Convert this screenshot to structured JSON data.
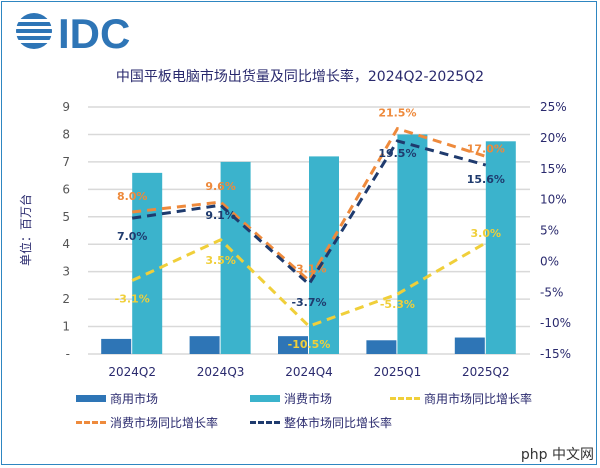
{
  "logo_text": "IDC",
  "watermark": "php 中文网",
  "chart_data": {
    "type": "bar+line",
    "title": "中国平板电脑市场出货量及同比增长率，2024Q2-2025Q2",
    "ylabel": "单位：百万台",
    "categories": [
      "2024Q2",
      "2024Q3",
      "2024Q4",
      "2025Q1",
      "2025Q2"
    ],
    "ylim": [
      0,
      9
    ],
    "y_ticks": [
      "-",
      "1",
      "2",
      "3",
      "4",
      "5",
      "6",
      "7",
      "8",
      "9"
    ],
    "y2lim": [
      -15,
      25
    ],
    "y2_ticks": [
      "-15%",
      "-10%",
      "-5%",
      "0%",
      "5%",
      "10%",
      "15%",
      "20%",
      "25%"
    ],
    "grid": true,
    "legend_position": "bottom",
    "bars": [
      {
        "name": "商用市场",
        "color": "#2e75b6",
        "values": [
          0.55,
          0.65,
          0.65,
          0.5,
          0.6
        ]
      },
      {
        "name": "消费市场",
        "color": "#3bb3cc",
        "values": [
          6.6,
          7.0,
          7.2,
          8.0,
          7.75
        ]
      }
    ],
    "lines": [
      {
        "name": "商用市场同比增长率",
        "color": "#f0cf3a",
        "values": [
          -3.1,
          3.5,
          -10.5,
          -5.3,
          3.0
        ],
        "labels": [
          "-3.1%",
          "3.5%",
          "-10.5%",
          "-5.3%",
          "3.0%"
        ]
      },
      {
        "name": "消费市场同比增长率",
        "color": "#ee8a3c",
        "values": [
          8.0,
          9.6,
          -3.1,
          21.5,
          17.0
        ],
        "labels": [
          "8.0%",
          "9.6%",
          "-3.1%",
          "21.5%",
          "17.0%"
        ]
      },
      {
        "name": "整体市场同比增长率",
        "color": "#1f3b6e",
        "values": [
          7.0,
          9.1,
          -3.7,
          19.5,
          15.6
        ],
        "labels": [
          "7.0%",
          "9.1%",
          "-3.7%",
          "19.5%",
          "15.6%"
        ]
      }
    ]
  }
}
